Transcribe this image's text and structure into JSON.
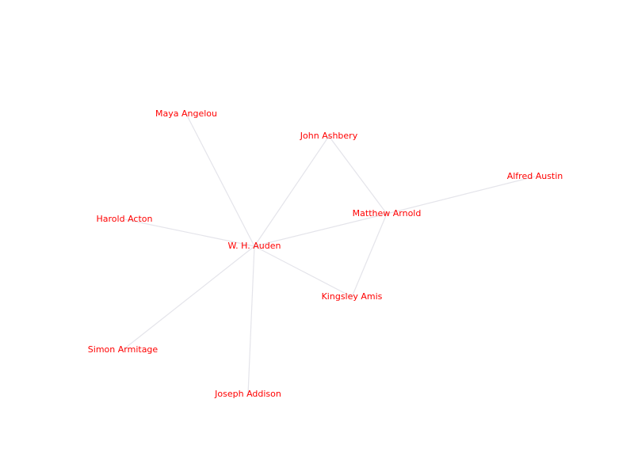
{
  "graph": {
    "type": "network",
    "colors": {
      "label": "#ff0000",
      "edge": "#e4e4ea",
      "background": "#ffffff"
    },
    "nodes": [
      {
        "id": "auden",
        "label": "W. H. Auden"
      },
      {
        "id": "angelou",
        "label": "Maya Angelou"
      },
      {
        "id": "ashbery",
        "label": "John Ashbery"
      },
      {
        "id": "austin",
        "label": "Alfred Austin"
      },
      {
        "id": "arnold",
        "label": "Matthew Arnold"
      },
      {
        "id": "acton",
        "label": "Harold Acton"
      },
      {
        "id": "amis",
        "label": "Kingsley Amis"
      },
      {
        "id": "armitage",
        "label": "Simon Armitage"
      },
      {
        "id": "addison",
        "label": "Joseph Addison"
      }
    ],
    "edges": [
      {
        "source": "auden",
        "target": "angelou"
      },
      {
        "source": "auden",
        "target": "ashbery"
      },
      {
        "source": "auden",
        "target": "arnold"
      },
      {
        "source": "auden",
        "target": "acton"
      },
      {
        "source": "auden",
        "target": "amis"
      },
      {
        "source": "auden",
        "target": "armitage"
      },
      {
        "source": "auden",
        "target": "addison"
      },
      {
        "source": "ashbery",
        "target": "arnold"
      },
      {
        "source": "arnold",
        "target": "austin"
      },
      {
        "source": "arnold",
        "target": "amis"
      }
    ]
  }
}
